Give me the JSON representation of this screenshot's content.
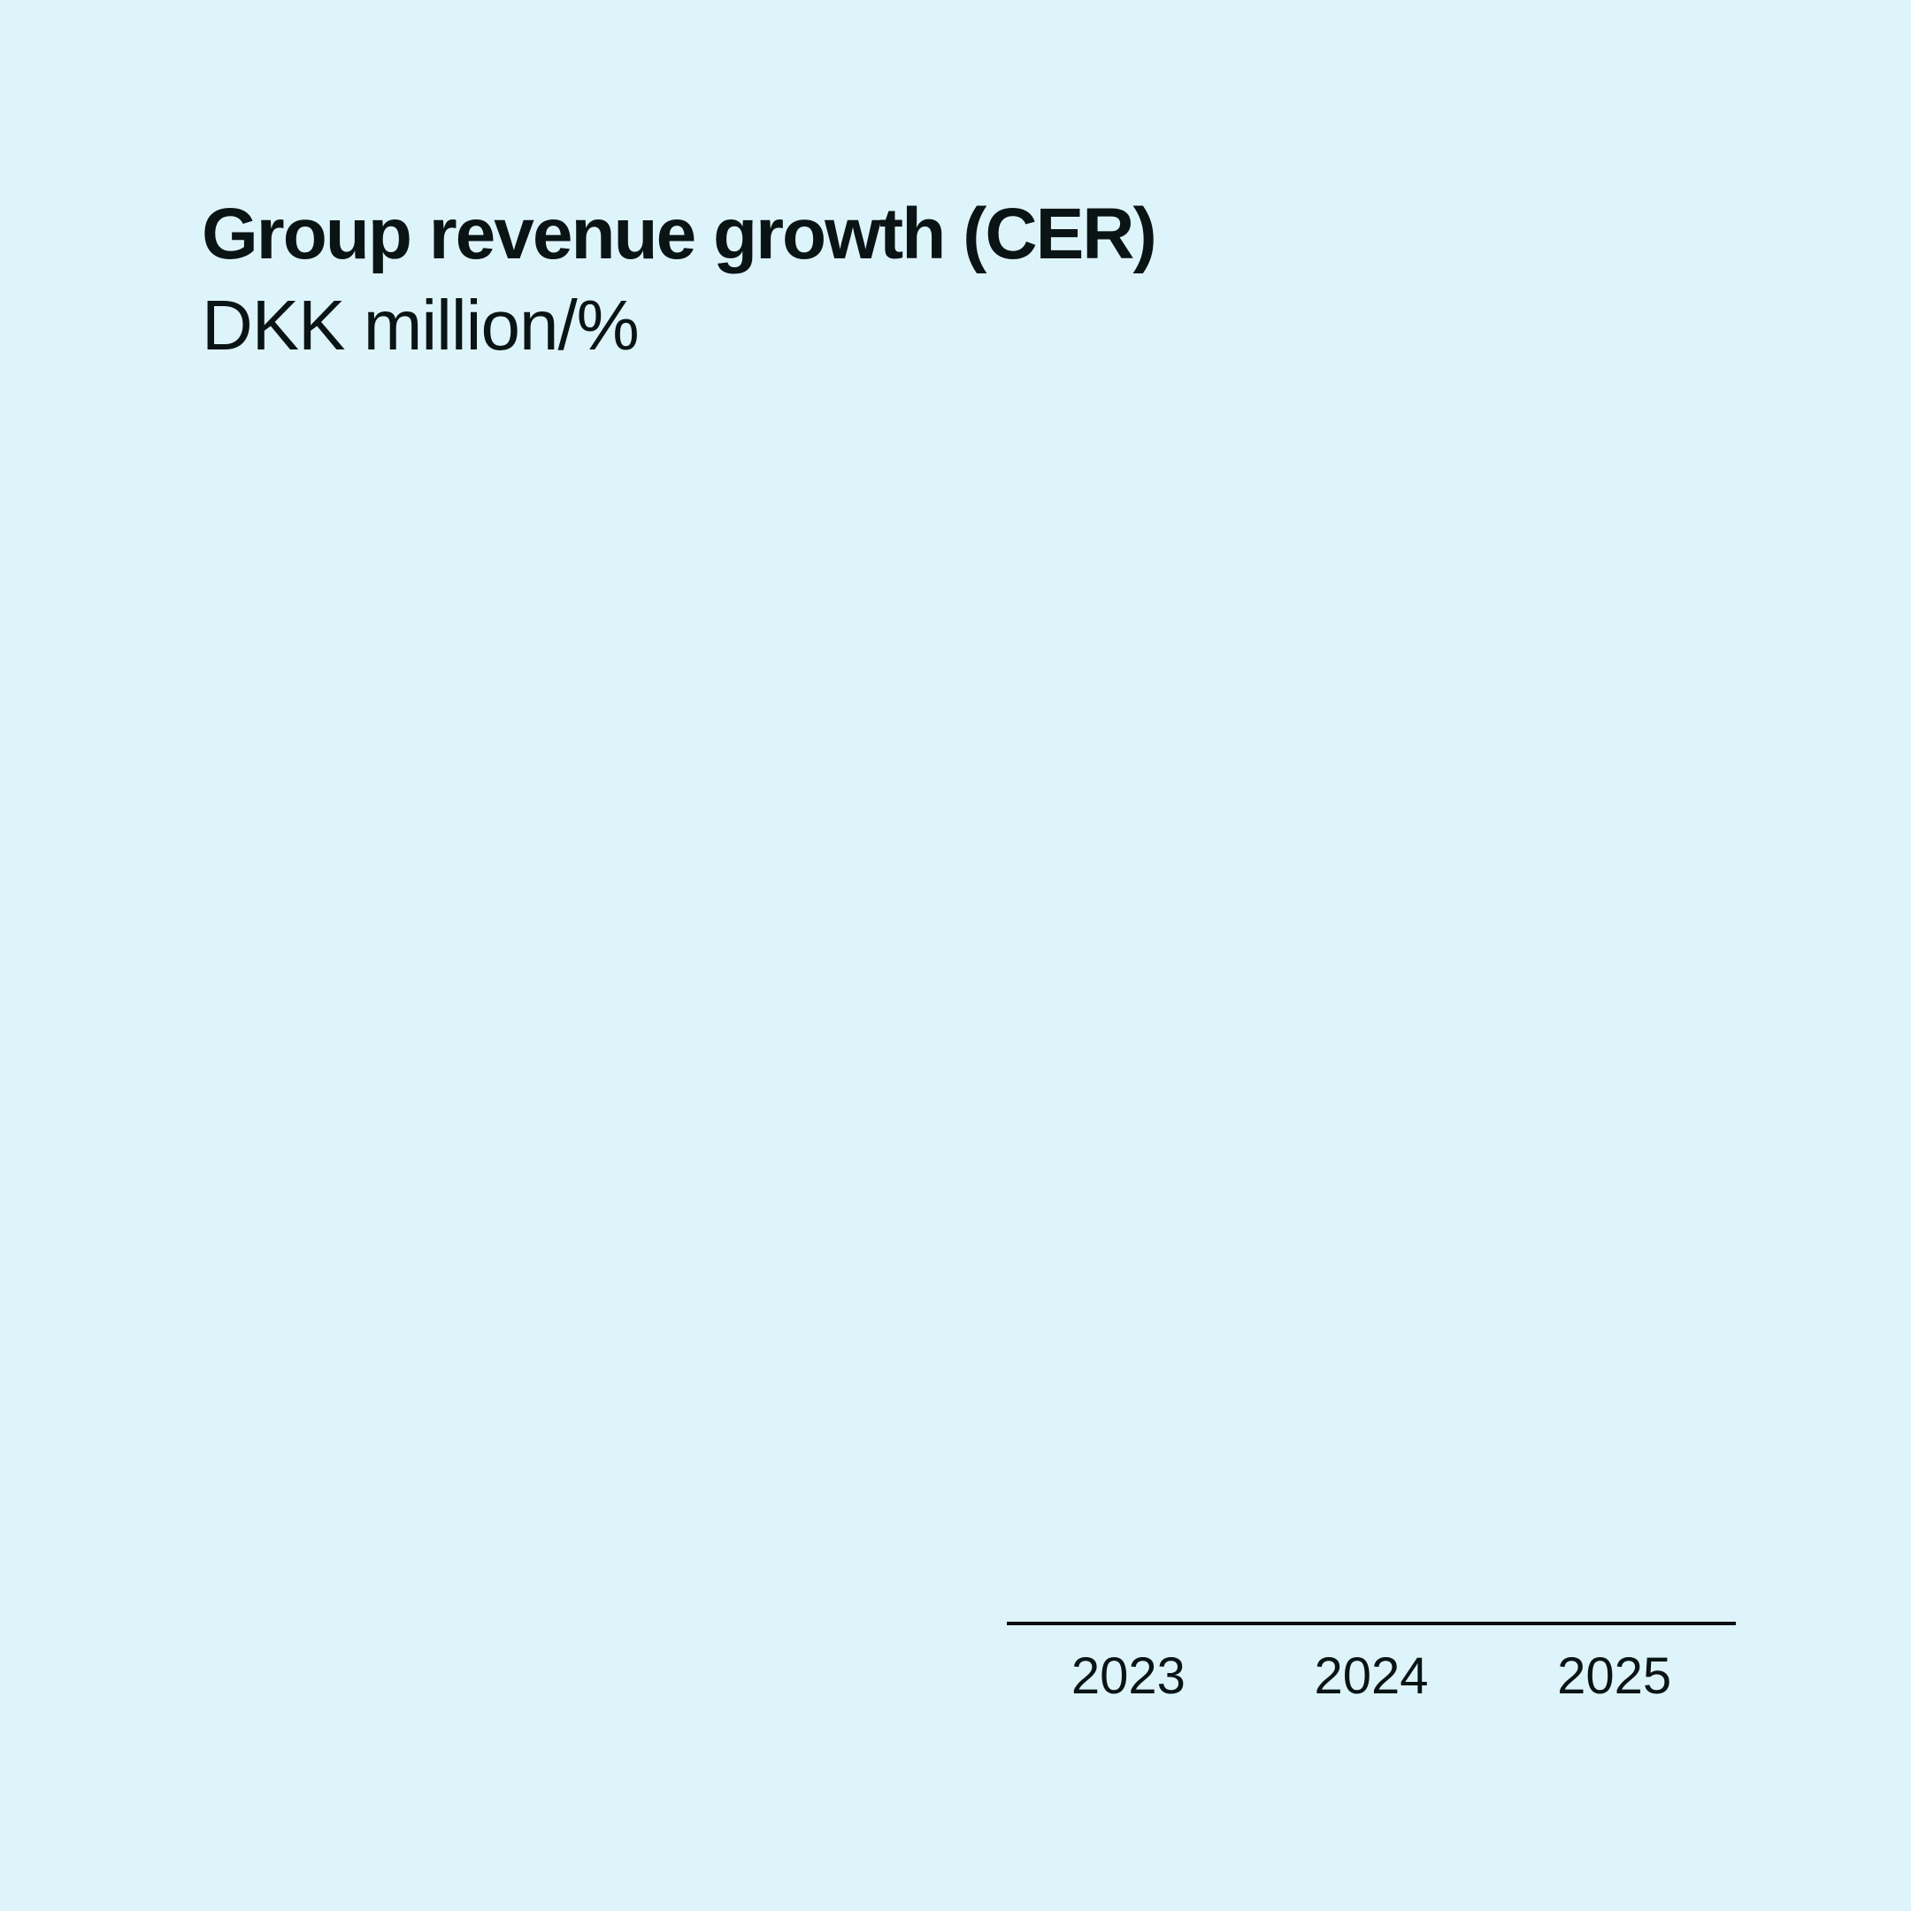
{
  "page": {
    "colors": {
      "background": "#def4fb",
      "text": "#0a1414",
      "axis_line": "#0b0f12"
    }
  },
  "chart": {
    "title": "Group revenue growth (CER)",
    "subtitle": "DKK million/%",
    "x_labels": [
      "2023",
      "2024",
      "2025"
    ]
  },
  "chart_data": {
    "type": "bar",
    "title": "Group revenue growth (CER)",
    "ylabel": "DKK million/%",
    "categories": [
      "2023",
      "2024",
      "2025"
    ],
    "values": [],
    "series": [],
    "grid": false,
    "legend_position": "none",
    "x_axis_line_visible": true,
    "note": "Plot area is empty: only the x-axis baseline and the three year tick labels are rendered; no bars, gridlines, y-axis ticks or data labels are visible."
  }
}
